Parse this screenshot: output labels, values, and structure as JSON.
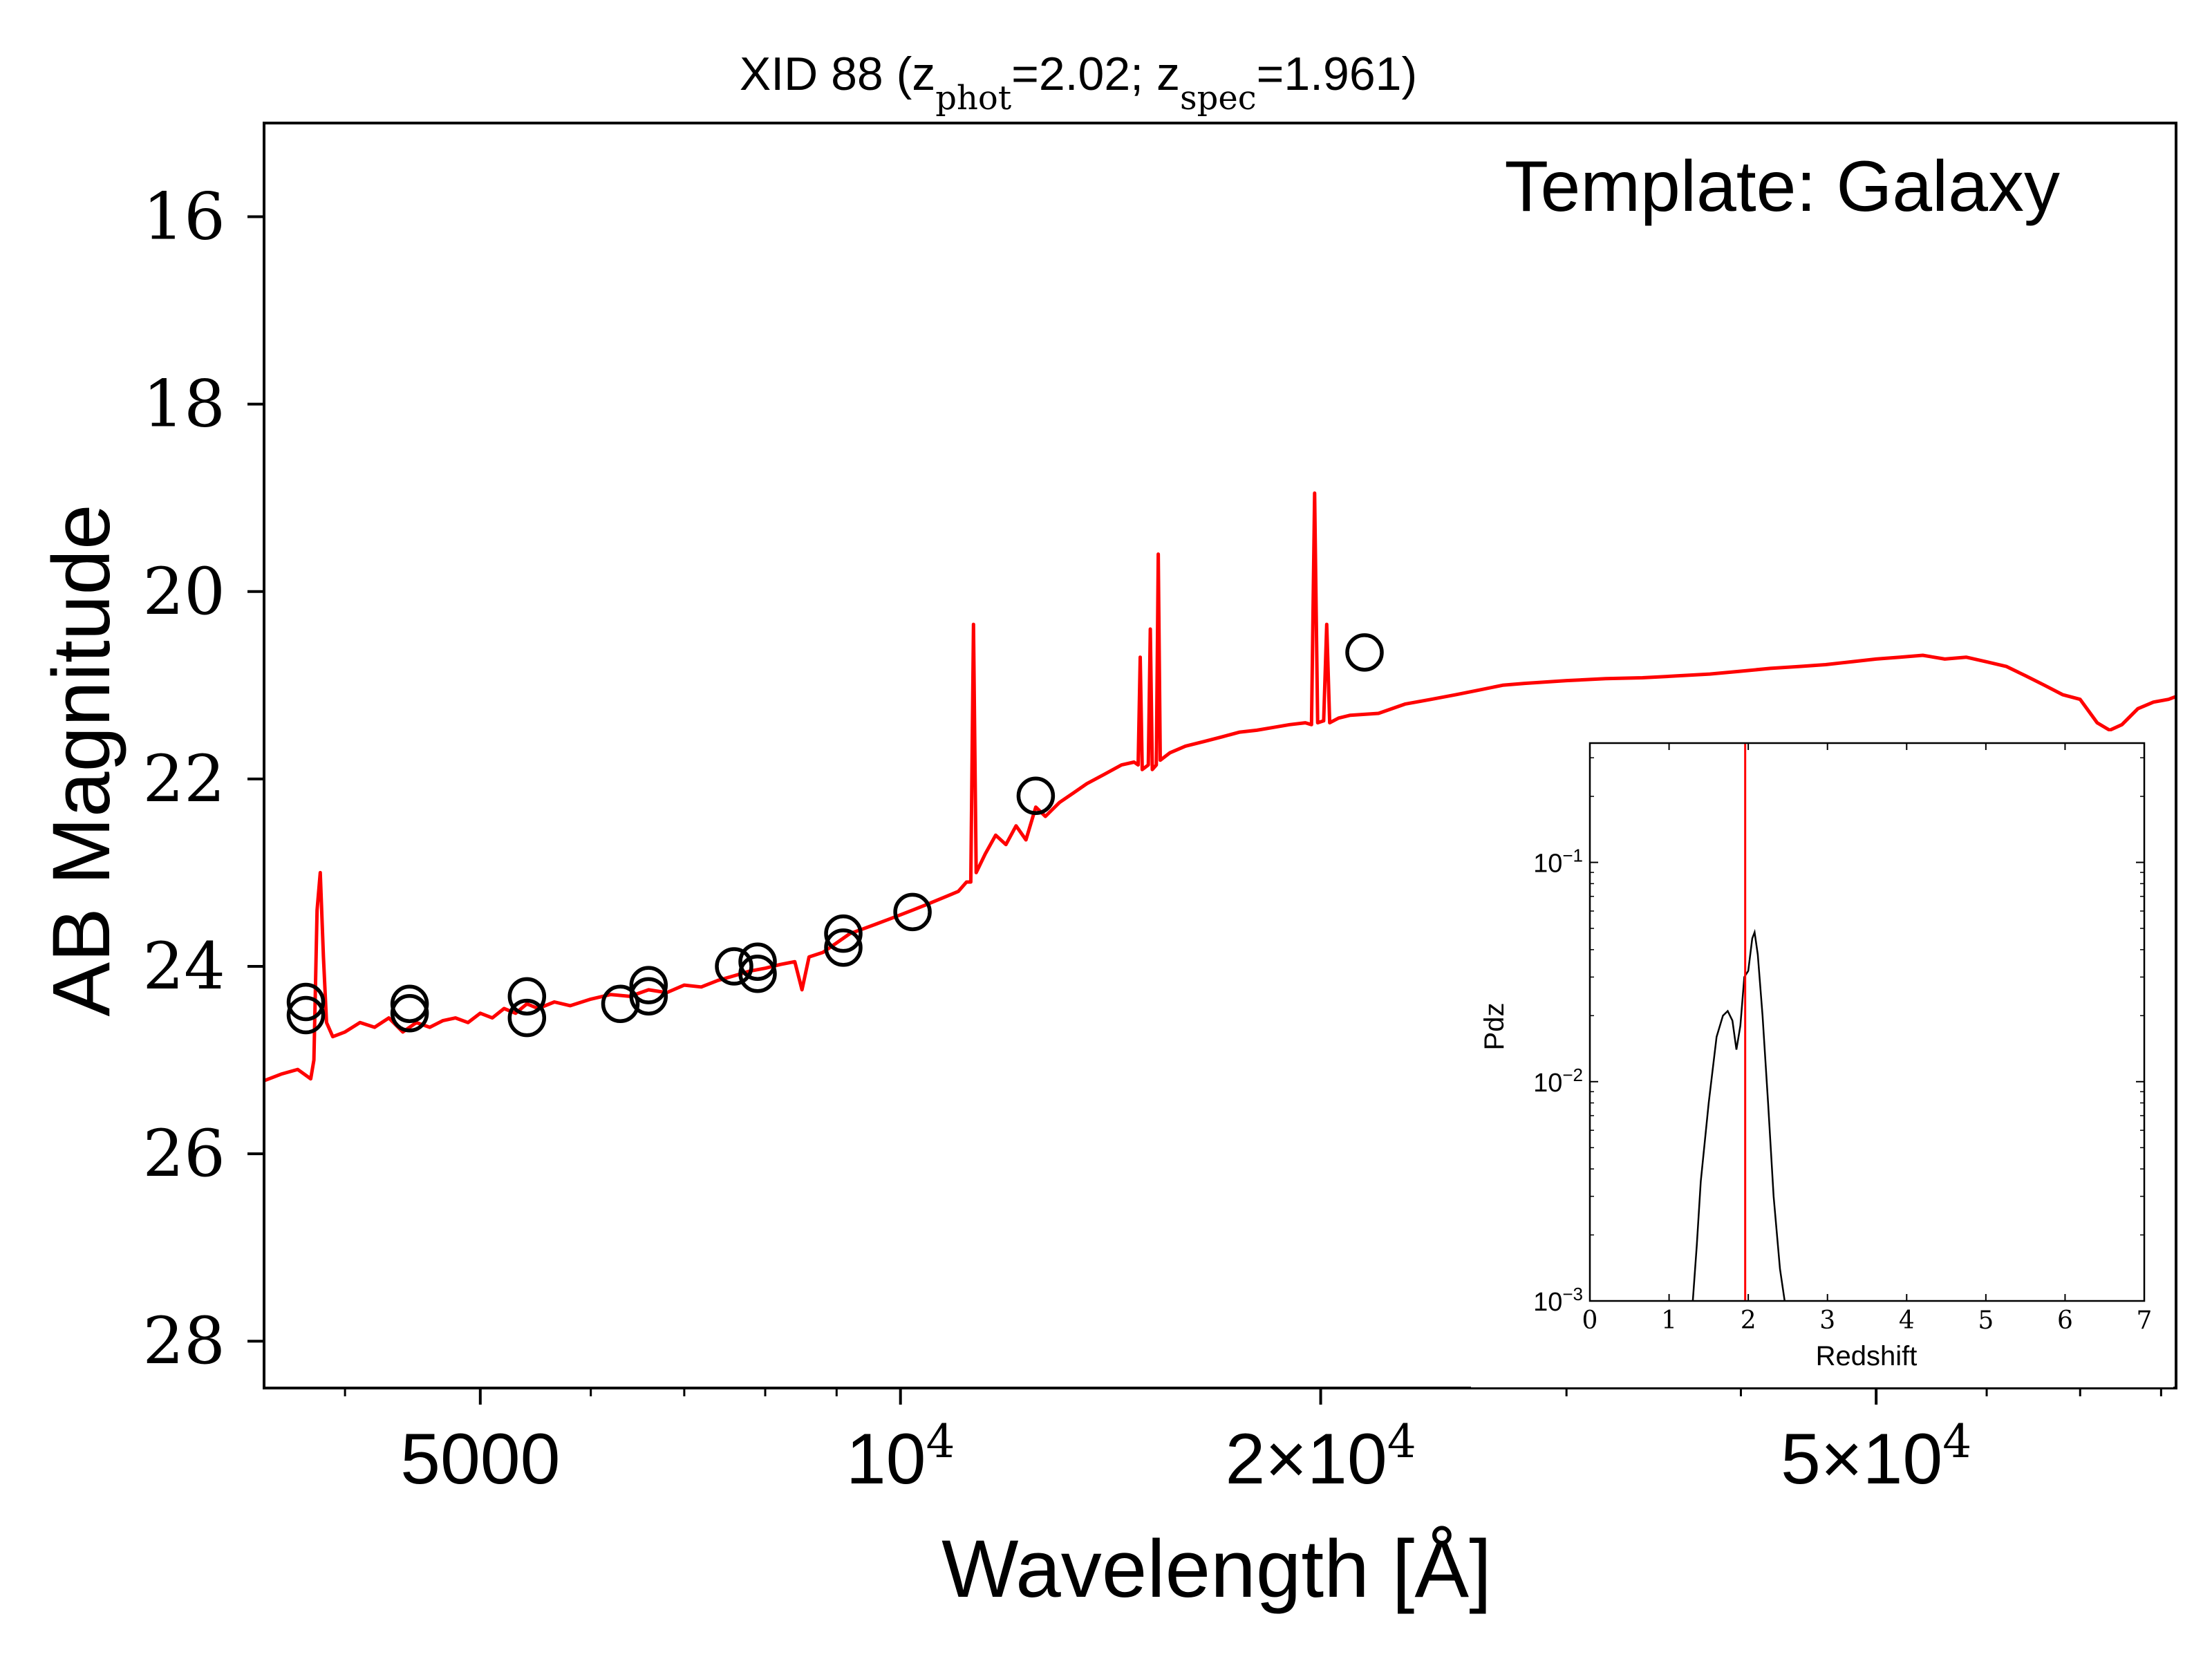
{
  "chart_data": [
    {
      "type": "line",
      "title": {
        "prefix": "XID 88 (z",
        "sub1": "phot",
        "mid": "=2.02; z",
        "sub2": "spec",
        "suffix": "=1.961)"
      },
      "annotation": "Template: Galaxy",
      "xlabel": "Wavelength [Å]",
      "ylabel": "AB Magnitude",
      "x_scale": "log",
      "y_inverted": true,
      "xlim": [
        3500,
        82000
      ],
      "ylim": [
        28.5,
        15.0
      ],
      "x_ticks": [
        {
          "value": 5000,
          "base": "5000",
          "exp": ""
        },
        {
          "value": 10000,
          "base": "10",
          "exp": "4"
        },
        {
          "value": 20000,
          "base": "2×10",
          "exp": "4"
        },
        {
          "value": 50000,
          "base": "5×10",
          "exp": "4"
        }
      ],
      "y_ticks": [
        16,
        18,
        20,
        22,
        24,
        26,
        28
      ],
      "colors": {
        "template": "#ff0000",
        "photometry": "#000000"
      },
      "series": [
        {
          "style": "line",
          "color": "#ff0000",
          "points": [
            [
              3500,
              25.22
            ],
            [
              3600,
              25.15
            ],
            [
              3700,
              25.1
            ],
            [
              3780,
              25.2
            ],
            [
              3800,
              25.0
            ],
            [
              3820,
              23.4
            ],
            [
              3840,
              23.0
            ],
            [
              3860,
              23.9
            ],
            [
              3880,
              24.6
            ],
            [
              3920,
              24.75
            ],
            [
              4000,
              24.7
            ],
            [
              4100,
              24.6
            ],
            [
              4200,
              24.65
            ],
            [
              4300,
              24.55
            ],
            [
              4400,
              24.7
            ],
            [
              4500,
              24.6
            ],
            [
              4600,
              24.65
            ],
            [
              4700,
              24.58
            ],
            [
              4800,
              24.55
            ],
            [
              4900,
              24.6
            ],
            [
              5000,
              24.5
            ],
            [
              5100,
              24.55
            ],
            [
              5200,
              24.45
            ],
            [
              5300,
              24.5
            ],
            [
              5400,
              24.4
            ],
            [
              5500,
              24.45
            ],
            [
              5650,
              24.38
            ],
            [
              5800,
              24.42
            ],
            [
              6000,
              24.35
            ],
            [
              6200,
              24.3
            ],
            [
              6400,
              24.32
            ],
            [
              6600,
              24.25
            ],
            [
              6800,
              24.28
            ],
            [
              7000,
              24.2
            ],
            [
              7200,
              24.22
            ],
            [
              7400,
              24.15
            ],
            [
              7600,
              24.1
            ],
            [
              7800,
              24.05
            ],
            [
              8000,
              24.02
            ],
            [
              8200,
              23.98
            ],
            [
              8400,
              23.95
            ],
            [
              8500,
              24.25
            ],
            [
              8600,
              23.9
            ],
            [
              8800,
              23.85
            ],
            [
              9000,
              23.75
            ],
            [
              9200,
              23.65
            ],
            [
              9400,
              23.6
            ],
            [
              9600,
              23.55
            ],
            [
              9800,
              23.5
            ],
            [
              10000,
              23.45
            ],
            [
              10200,
              23.4
            ],
            [
              10400,
              23.35
            ],
            [
              10600,
              23.3
            ],
            [
              10800,
              23.25
            ],
            [
              11000,
              23.2
            ],
            [
              11150,
              23.1
            ],
            [
              11230,
              23.1
            ],
            [
              11280,
              20.35
            ],
            [
              11330,
              23.0
            ],
            [
              11500,
              22.8
            ],
            [
              11700,
              22.6
            ],
            [
              11900,
              22.7
            ],
            [
              12100,
              22.5
            ],
            [
              12300,
              22.65
            ],
            [
              12500,
              22.3
            ],
            [
              12700,
              22.4
            ],
            [
              13000,
              22.25
            ],
            [
              13300,
              22.15
            ],
            [
              13600,
              22.05
            ],
            [
              14000,
              21.95
            ],
            [
              14400,
              21.85
            ],
            [
              14700,
              21.82
            ],
            [
              14800,
              21.85
            ],
            [
              14850,
              20.7
            ],
            [
              14900,
              21.9
            ],
            [
              15050,
              21.85
            ],
            [
              15100,
              20.4
            ],
            [
              15150,
              21.9
            ],
            [
              15250,
              21.85
            ],
            [
              15300,
              19.6
            ],
            [
              15350,
              21.8
            ],
            [
              15600,
              21.72
            ],
            [
              16000,
              21.65
            ],
            [
              16500,
              21.6
            ],
            [
              17000,
              21.55
            ],
            [
              17500,
              21.5
            ],
            [
              18000,
              21.48
            ],
            [
              18500,
              21.45
            ],
            [
              19000,
              21.42
            ],
            [
              19500,
              21.4
            ],
            [
              19700,
              21.42
            ],
            [
              19800,
              18.95
            ],
            [
              19900,
              21.4
            ],
            [
              20100,
              21.38
            ],
            [
              20200,
              20.35
            ],
            [
              20300,
              21.4
            ],
            [
              20600,
              21.35
            ],
            [
              21000,
              21.32
            ],
            [
              22000,
              21.3
            ],
            [
              23000,
              21.2
            ],
            [
              24000,
              21.15
            ],
            [
              25000,
              21.1
            ],
            [
              26000,
              21.05
            ],
            [
              27000,
              21.0
            ],
            [
              28000,
              20.98
            ],
            [
              30000,
              20.95
            ],
            [
              32000,
              20.93
            ],
            [
              34000,
              20.92
            ],
            [
              36000,
              20.9
            ],
            [
              38000,
              20.88
            ],
            [
              40000,
              20.85
            ],
            [
              42000,
              20.82
            ],
            [
              44000,
              20.8
            ],
            [
              46000,
              20.78
            ],
            [
              48000,
              20.75
            ],
            [
              50000,
              20.72
            ],
            [
              52000,
              20.7
            ],
            [
              54000,
              20.68
            ],
            [
              56000,
              20.72
            ],
            [
              58000,
              20.7
            ],
            [
              60000,
              20.75
            ],
            [
              62000,
              20.8
            ],
            [
              64000,
              20.9
            ],
            [
              66000,
              21.0
            ],
            [
              68000,
              21.1
            ],
            [
              70000,
              21.15
            ],
            [
              72000,
              21.4
            ],
            [
              73500,
              21.48
            ],
            [
              75000,
              21.42
            ],
            [
              77000,
              21.25
            ],
            [
              79000,
              21.18
            ],
            [
              81000,
              21.15
            ],
            [
              82000,
              21.12
            ]
          ]
        },
        {
          "style": "open-circles",
          "color": "#000000",
          "points": [
            [
              3750,
              24.38
            ],
            [
              3750,
              24.52
            ],
            [
              4450,
              24.4
            ],
            [
              4450,
              24.5
            ],
            [
              5400,
              24.32
            ],
            [
              5400,
              24.55
            ],
            [
              6300,
              24.4
            ],
            [
              6600,
              24.2
            ],
            [
              6600,
              24.32
            ],
            [
              7600,
              24.0
            ],
            [
              7900,
              23.95
            ],
            [
              7900,
              24.08
            ],
            [
              9100,
              23.65
            ],
            [
              9100,
              23.8
            ],
            [
              10200,
              23.42
            ],
            [
              12500,
              22.18
            ],
            [
              21500,
              20.65
            ]
          ]
        }
      ]
    },
    {
      "type": "line",
      "title": "",
      "xlabel": "Redshift",
      "ylabel": "Pdz",
      "y_scale": "log",
      "xlim": [
        0,
        7
      ],
      "ylim": [
        0.001,
        0.35
      ],
      "x_ticks": [
        "0",
        "1",
        "2",
        "3",
        "4",
        "5",
        "6",
        "7"
      ],
      "y_ticks": [
        {
          "value": 0.1,
          "base": "10",
          "exp": "−1"
        },
        {
          "value": 0.01,
          "base": "10",
          "exp": "−2"
        },
        {
          "value": 0.001,
          "base": "10",
          "exp": "−3"
        }
      ],
      "marker_line": {
        "x": 1.961,
        "color": "#ff0000"
      },
      "series": [
        {
          "color": "#000000",
          "points": [
            [
              1.3,
              0.001
            ],
            [
              1.35,
              0.0018
            ],
            [
              1.4,
              0.0035
            ],
            [
              1.5,
              0.008
            ],
            [
              1.6,
              0.016
            ],
            [
              1.68,
              0.02
            ],
            [
              1.74,
              0.021
            ],
            [
              1.8,
              0.019
            ],
            [
              1.85,
              0.014
            ],
            [
              1.9,
              0.018
            ],
            [
              1.95,
              0.03
            ],
            [
              2.0,
              0.032
            ],
            [
              2.05,
              0.045
            ],
            [
              2.08,
              0.048
            ],
            [
              2.12,
              0.038
            ],
            [
              2.18,
              0.02
            ],
            [
              2.25,
              0.008
            ],
            [
              2.32,
              0.003
            ],
            [
              2.4,
              0.0014
            ],
            [
              2.46,
              0.001
            ]
          ]
        }
      ]
    }
  ]
}
